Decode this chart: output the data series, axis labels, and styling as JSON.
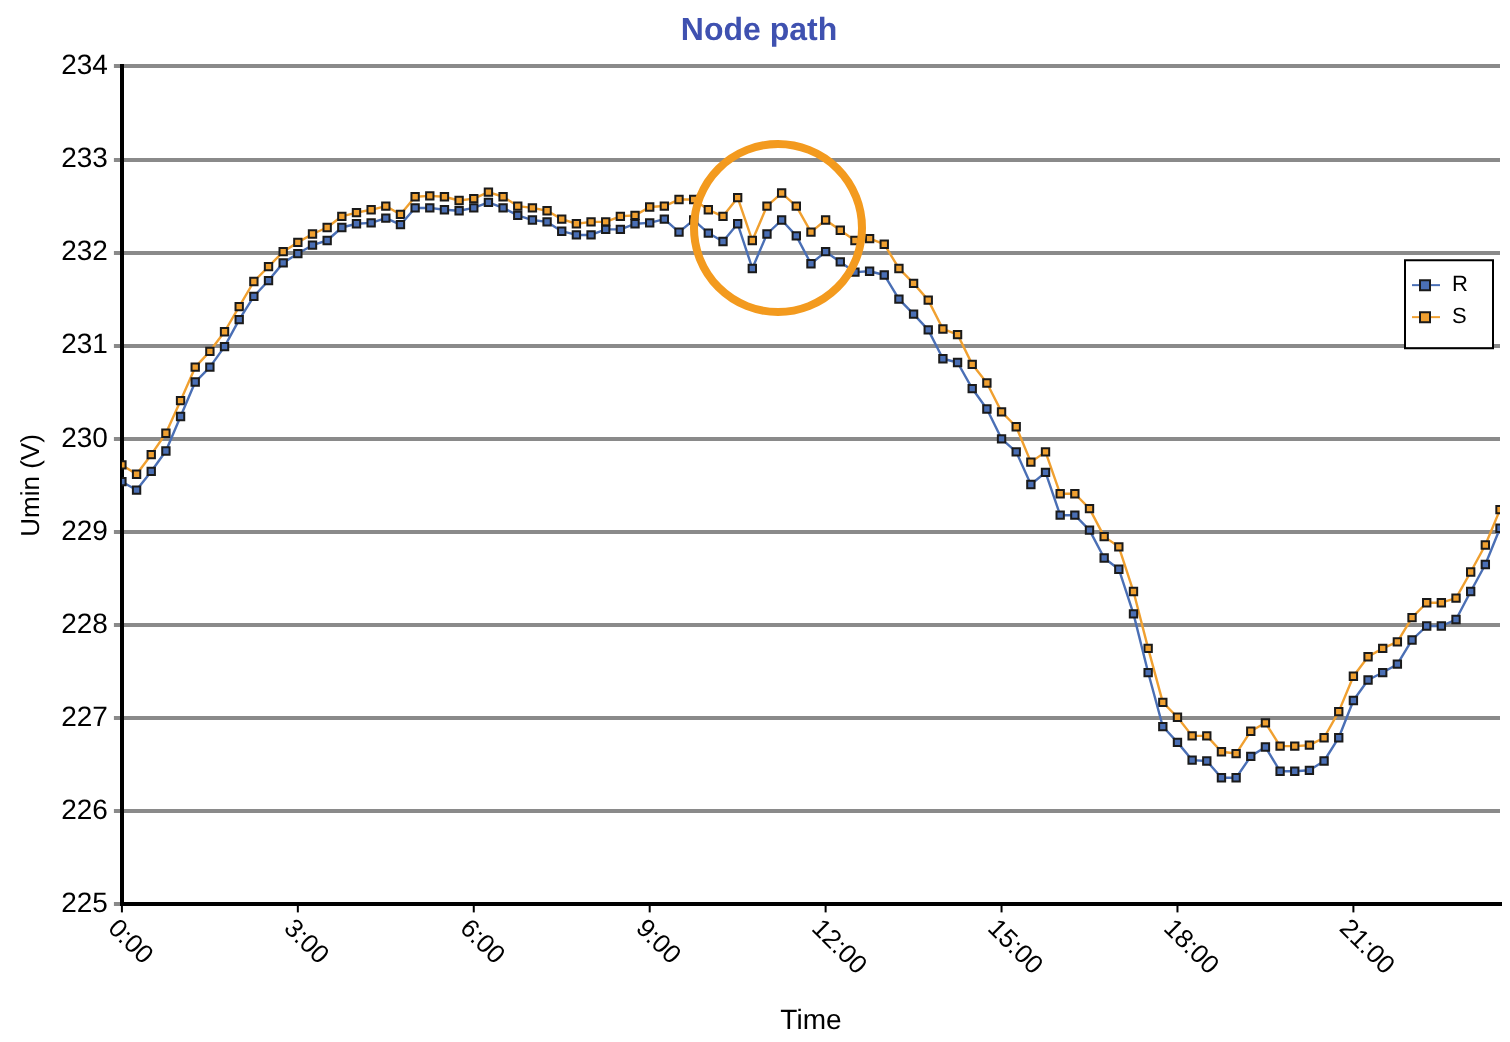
{
  "chart_data": {
    "type": "line",
    "title": "Node path",
    "xlabel": "Time",
    "ylabel": "Umin (V)",
    "x": [
      0,
      0.25,
      0.5,
      0.75,
      1,
      1.25,
      1.5,
      1.75,
      2,
      2.25,
      2.5,
      2.75,
      3,
      3.25,
      3.5,
      3.75,
      4,
      4.25,
      4.5,
      4.75,
      5,
      5.25,
      5.5,
      5.75,
      6,
      6.25,
      6.5,
      6.75,
      7,
      7.25,
      7.5,
      7.75,
      8,
      8.25,
      8.5,
      8.75,
      9,
      9.25,
      9.5,
      9.75,
      10,
      10.25,
      10.5,
      10.75,
      11,
      11.25,
      11.5,
      11.75,
      12,
      12.25,
      12.5,
      12.75,
      13,
      13.25,
      13.5,
      13.75,
      14,
      14.25,
      14.5,
      14.75,
      15,
      15.25,
      15.5,
      15.75,
      16,
      16.25,
      16.5,
      16.75,
      17,
      17.25,
      17.5,
      17.75,
      18,
      18.25,
      18.5,
      18.75,
      19,
      19.25,
      19.5,
      19.75,
      20,
      20.25,
      20.5,
      20.75,
      21,
      21.25,
      21.5,
      21.75,
      22,
      22.25,
      22.5,
      22.75,
      23,
      23.25,
      23.5
    ],
    "series": [
      {
        "name": "R",
        "color": "#4a6fb5",
        "values": [
          229.54,
          229.45,
          229.65,
          229.87,
          230.24,
          230.61,
          230.77,
          230.99,
          231.28,
          231.53,
          231.7,
          231.89,
          231.99,
          232.08,
          232.13,
          232.27,
          232.31,
          232.32,
          232.37,
          232.3,
          232.48,
          232.48,
          232.46,
          232.45,
          232.48,
          232.54,
          232.48,
          232.4,
          232.35,
          232.33,
          232.23,
          232.19,
          232.19,
          232.25,
          232.25,
          232.31,
          232.32,
          232.36,
          232.22,
          232.35,
          232.21,
          232.12,
          232.31,
          231.83,
          232.2,
          232.35,
          232.18,
          231.88,
          232.01,
          231.9,
          231.79,
          231.8,
          231.76,
          231.5,
          231.34,
          231.17,
          230.86,
          230.82,
          230.54,
          230.32,
          230,
          229.86,
          229.51,
          229.64,
          229.18,
          229.18,
          229.02,
          228.72,
          228.6,
          228.12,
          227.49,
          226.91,
          226.74,
          226.55,
          226.54,
          226.36,
          226.36,
          226.59,
          226.69,
          226.43,
          226.43,
          226.44,
          226.54,
          226.79,
          227.19,
          227.41,
          227.49,
          227.58,
          227.84,
          227.99,
          227.99,
          228.06,
          228.36,
          228.65,
          229.04
        ]
      },
      {
        "name": "S",
        "color": "#f0a030",
        "values": [
          229.72,
          229.62,
          229.83,
          230.06,
          230.41,
          230.77,
          230.94,
          231.15,
          231.42,
          231.69,
          231.85,
          232.01,
          232.11,
          232.2,
          232.27,
          232.39,
          232.43,
          232.46,
          232.5,
          232.41,
          232.6,
          232.61,
          232.6,
          232.56,
          232.58,
          232.65,
          232.6,
          232.5,
          232.48,
          232.45,
          232.36,
          232.31,
          232.33,
          232.33,
          232.39,
          232.4,
          232.49,
          232.5,
          232.57,
          232.57,
          232.46,
          232.39,
          232.59,
          232.13,
          232.5,
          232.64,
          232.5,
          232.22,
          232.35,
          232.24,
          232.13,
          232.15,
          232.09,
          231.83,
          231.67,
          231.49,
          231.18,
          231.12,
          230.8,
          230.6,
          230.29,
          230.13,
          229.75,
          229.86,
          229.41,
          229.41,
          229.25,
          228.95,
          228.84,
          228.36,
          227.75,
          227.17,
          227.01,
          226.81,
          226.81,
          226.64,
          226.62,
          226.86,
          226.95,
          226.7,
          226.7,
          226.71,
          226.79,
          227.07,
          227.45,
          227.66,
          227.75,
          227.82,
          228.08,
          228.24,
          228.24,
          228.29,
          228.57,
          228.86,
          229.24
        ]
      }
    ],
    "xlim": [
      0,
      23.5
    ],
    "xticks": [
      {
        "value": 0,
        "label": "0:00"
      },
      {
        "value": 3,
        "label": "3:00"
      },
      {
        "value": 6,
        "label": "6:00"
      },
      {
        "value": 9,
        "label": "9:00"
      },
      {
        "value": 12,
        "label": "12:00"
      },
      {
        "value": 15,
        "label": "15:00"
      },
      {
        "value": 18,
        "label": "18:00"
      },
      {
        "value": 21,
        "label": "21:00"
      }
    ],
    "ylim": [
      225,
      234
    ],
    "yticks": [
      225,
      226,
      227,
      228,
      229,
      230,
      231,
      232,
      233,
      234
    ],
    "grid": "y",
    "legend": "right",
    "marker": "square",
    "line_style": "solid"
  }
}
